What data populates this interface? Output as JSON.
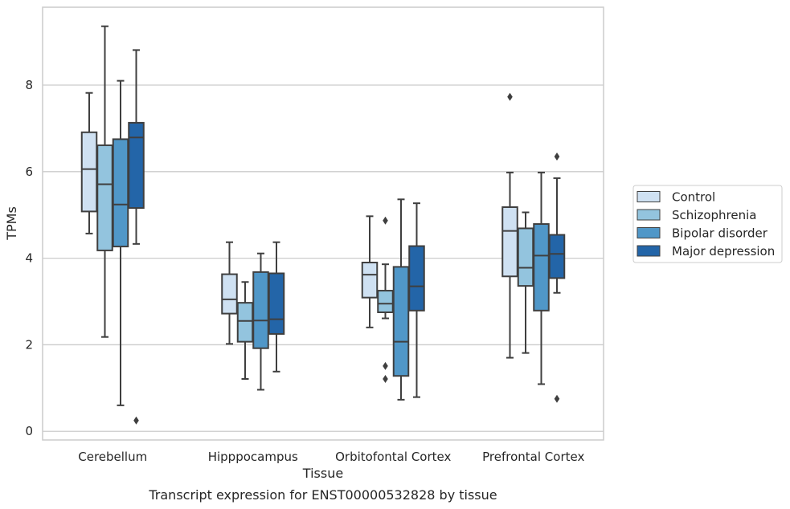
{
  "chart_data": {
    "type": "box",
    "title": "",
    "caption": "Transcript expression for ENST00000532828 by tissue",
    "xlabel": "Tissue",
    "ylabel": "TPMs",
    "ylim": [
      -0.2,
      9.8
    ],
    "yticks": [
      0,
      2,
      4,
      6,
      8
    ],
    "categories": [
      "Cerebellum",
      "Hipppocampus",
      "Orbitofontal Cortex",
      "Prefrontal Cortex"
    ],
    "grid": "horizontal",
    "legend_position": "right",
    "series": [
      {
        "name": "Control",
        "color": "#cfe1f2",
        "boxes": [
          {
            "whislo": 4.57,
            "q1": 5.08,
            "med": 6.06,
            "q3": 6.91,
            "whishi": 7.82,
            "fliers": []
          },
          {
            "whislo": 2.02,
            "q1": 2.72,
            "med": 3.05,
            "q3": 3.63,
            "whishi": 4.37,
            "fliers": []
          },
          {
            "whislo": 2.4,
            "q1": 3.09,
            "med": 3.62,
            "q3": 3.9,
            "whishi": 4.97,
            "fliers": []
          },
          {
            "whislo": 1.7,
            "q1": 3.58,
            "med": 4.63,
            "q3": 5.18,
            "whishi": 5.98,
            "fliers": [
              7.73
            ]
          }
        ]
      },
      {
        "name": "Schizophrenia",
        "color": "#93c4de",
        "boxes": [
          {
            "whislo": 2.18,
            "q1": 4.18,
            "med": 5.71,
            "q3": 6.61,
            "whishi": 9.36,
            "fliers": []
          },
          {
            "whislo": 1.21,
            "q1": 2.07,
            "med": 2.55,
            "q3": 2.97,
            "whishi": 3.45,
            "fliers": []
          },
          {
            "whislo": 2.61,
            "q1": 2.75,
            "med": 2.95,
            "q3": 3.25,
            "whishi": 3.86,
            "fliers": [
              4.87,
              1.51,
              1.21
            ]
          },
          {
            "whislo": 1.81,
            "q1": 3.36,
            "med": 3.78,
            "q3": 4.69,
            "whishi": 5.06,
            "fliers": []
          }
        ]
      },
      {
        "name": "Bipolar disorder",
        "color": "#5097c8",
        "boxes": [
          {
            "whislo": 0.6,
            "q1": 4.27,
            "med": 5.24,
            "q3": 6.75,
            "whishi": 8.1,
            "fliers": []
          },
          {
            "whislo": 0.96,
            "q1": 1.92,
            "med": 2.56,
            "q3": 3.68,
            "whishi": 4.11,
            "fliers": []
          },
          {
            "whislo": 0.73,
            "q1": 1.28,
            "med": 2.07,
            "q3": 3.8,
            "whishi": 5.36,
            "fliers": []
          },
          {
            "whislo": 1.09,
            "q1": 2.79,
            "med": 4.06,
            "q3": 4.79,
            "whishi": 5.98,
            "fliers": []
          }
        ]
      },
      {
        "name": "Major depression",
        "color": "#2365a8",
        "boxes": [
          {
            "whislo": 4.33,
            "q1": 5.16,
            "med": 6.79,
            "q3": 7.13,
            "whishi": 8.81,
            "fliers": [
              0.25
            ]
          },
          {
            "whislo": 1.38,
            "q1": 2.25,
            "med": 2.59,
            "q3": 3.65,
            "whishi": 4.37,
            "fliers": []
          },
          {
            "whislo": 0.79,
            "q1": 2.79,
            "med": 3.35,
            "q3": 4.28,
            "whishi": 5.27,
            "fliers": []
          },
          {
            "whislo": 3.2,
            "q1": 3.54,
            "med": 4.1,
            "q3": 4.54,
            "whishi": 5.85,
            "fliers": [
              6.35,
              0.75
            ]
          }
        ]
      }
    ]
  }
}
